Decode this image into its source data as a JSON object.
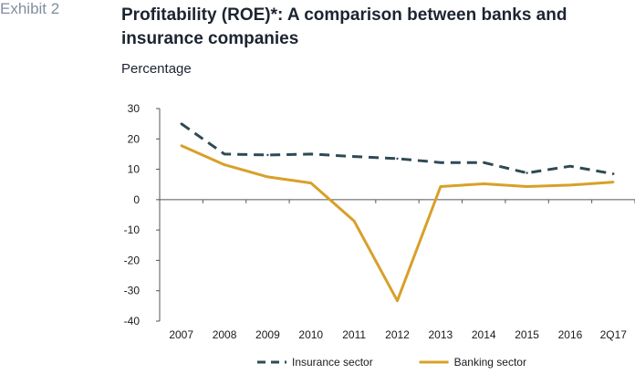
{
  "header": {
    "exhibit": "Exhibit 2",
    "title": "Profitability (ROE)*: A comparison between banks and insurance companies",
    "subtitle": "Percentage"
  },
  "chart_data": {
    "type": "line",
    "categories": [
      "2007",
      "2008",
      "2009",
      "2010",
      "2011",
      "2012",
      "2013",
      "2014",
      "2015",
      "2016",
      "2Q17"
    ],
    "ylim": [
      -40,
      30
    ],
    "yticks": [
      30,
      20,
      10,
      0,
      -10,
      -20,
      -30,
      -40
    ],
    "grid": false,
    "legend_position": "bottom",
    "series": [
      {
        "name": "Insurance sector",
        "style": "dashed",
        "color": "#2f4a54",
        "values": [
          25,
          15,
          14.7,
          15,
          14.2,
          13.5,
          12.2,
          12.2,
          8.8,
          11,
          8.5
        ]
      },
      {
        "name": "Banking sector",
        "style": "solid",
        "color": "#d8a029",
        "values": [
          17.8,
          11.5,
          7.5,
          5.5,
          -7,
          -33.3,
          4.3,
          5.2,
          4.3,
          4.8,
          5.8
        ]
      }
    ]
  }
}
